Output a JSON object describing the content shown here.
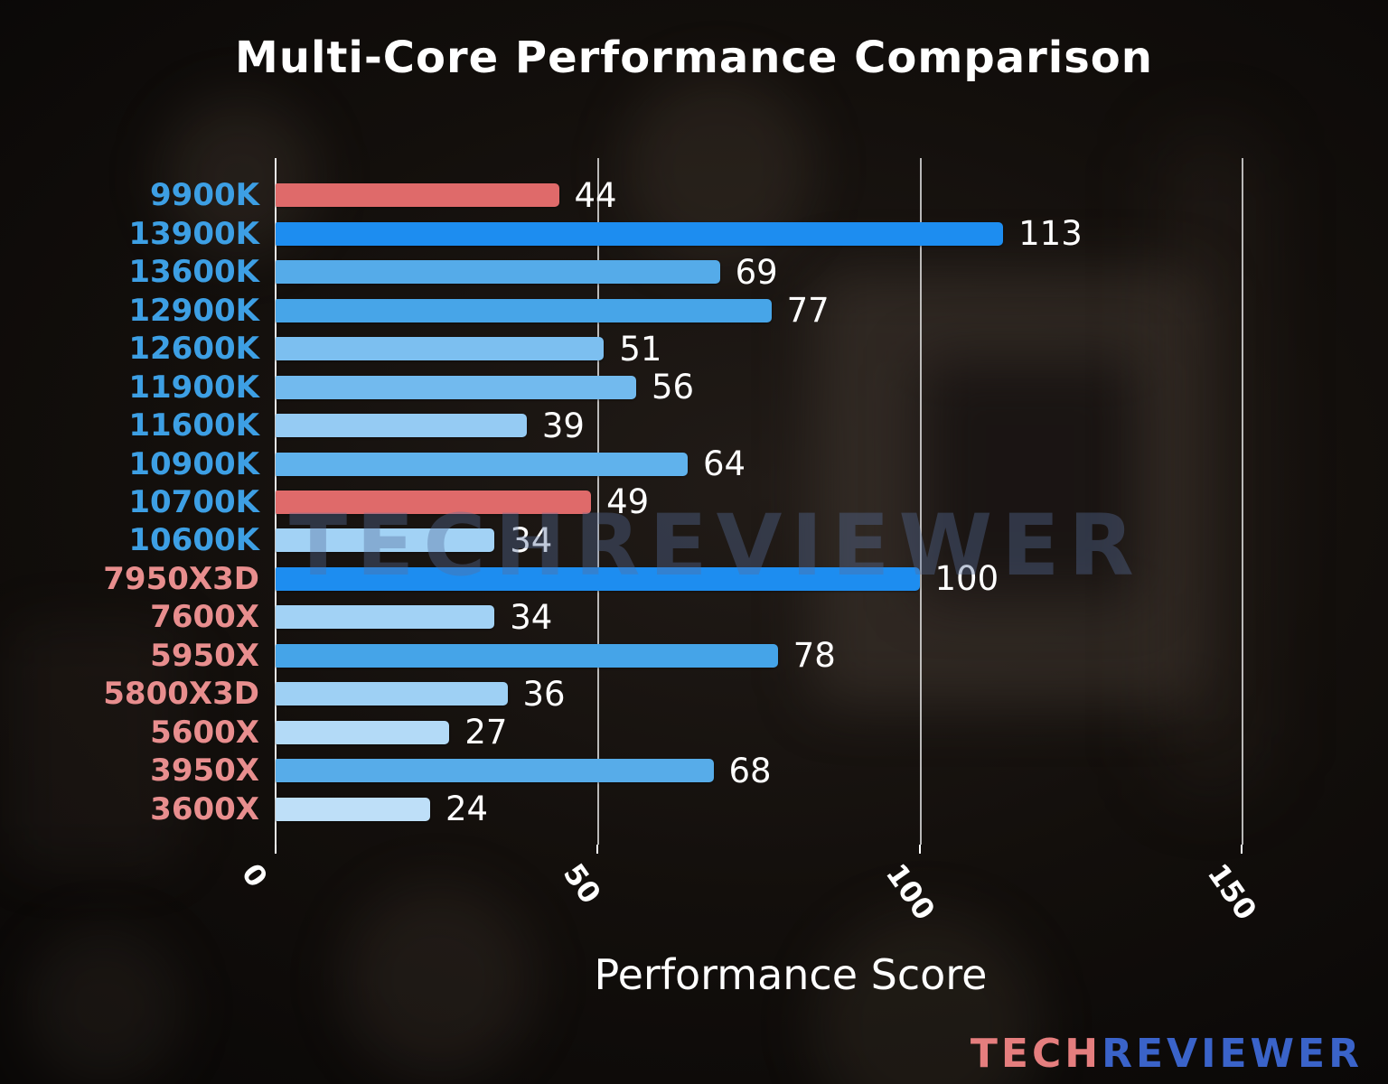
{
  "title": "Multi-Core Performance Comparison",
  "watermark": "TECHREVIEWER",
  "logo": {
    "tech": "TECH",
    "reviewer": "REVIEWER"
  },
  "chart_data": {
    "type": "bar",
    "orientation": "horizontal",
    "title": "Multi-Core Performance Comparison",
    "xlabel": "Performance Score",
    "xlim": [
      0,
      160
    ],
    "xticks": [
      0,
      50,
      100,
      150
    ],
    "grid": "vertical-gridlines-at-ticks",
    "legend": "none",
    "background": "dark blurred motherboard photo",
    "categories": [
      "9900K",
      "13900K",
      "13600K",
      "12900K",
      "12600K",
      "11900K",
      "11600K",
      "10900K",
      "10700K",
      "10600K",
      "7950X3D",
      "7600X",
      "5950X",
      "5800X3D",
      "5600X",
      "3950X",
      "3600X"
    ],
    "values": [
      44,
      113,
      69,
      77,
      51,
      56,
      39,
      64,
      49,
      34,
      100,
      34,
      78,
      36,
      27,
      68,
      24
    ],
    "bars": [
      {
        "label": "9900K",
        "value": 44,
        "bar_color": "#df6a6a",
        "label_color": "#3d9fe4"
      },
      {
        "label": "13900K",
        "value": 113,
        "bar_color": "#1d8df0",
        "label_color": "#3d9fe4"
      },
      {
        "label": "13600K",
        "value": 69,
        "bar_color": "#55abe9",
        "label_color": "#3d9fe4"
      },
      {
        "label": "12900K",
        "value": 77,
        "bar_color": "#47a5e8",
        "label_color": "#3d9fe4"
      },
      {
        "label": "12600K",
        "value": 51,
        "bar_color": "#7cbff0",
        "label_color": "#3d9fe4"
      },
      {
        "label": "11900K",
        "value": 56,
        "bar_color": "#72baee",
        "label_color": "#3d9fe4"
      },
      {
        "label": "11600K",
        "value": 39,
        "bar_color": "#95cbf3",
        "label_color": "#3d9fe4"
      },
      {
        "label": "10900K",
        "value": 64,
        "bar_color": "#60b2ec",
        "label_color": "#3d9fe4"
      },
      {
        "label": "10700K",
        "value": 49,
        "bar_color": "#df6a6a",
        "label_color": "#3d9fe4"
      },
      {
        "label": "10600K",
        "value": 34,
        "bar_color": "#a2d2f5",
        "label_color": "#3d9fe4"
      },
      {
        "label": "7950X3D",
        "value": 100,
        "bar_color": "#1d8df0",
        "label_color": "#e88e8e"
      },
      {
        "label": "7600X",
        "value": 34,
        "bar_color": "#a2d2f5",
        "label_color": "#e88e8e"
      },
      {
        "label": "5950X",
        "value": 78,
        "bar_color": "#45a4e8",
        "label_color": "#e88e8e"
      },
      {
        "label": "5800X3D",
        "value": 36,
        "bar_color": "#9ed0f4",
        "label_color": "#e88e8e"
      },
      {
        "label": "5600X",
        "value": 27,
        "bar_color": "#b3daf7",
        "label_color": "#e88e8e"
      },
      {
        "label": "3950X",
        "value": 68,
        "bar_color": "#57ace9",
        "label_color": "#e88e8e"
      },
      {
        "label": "3600X",
        "value": 24,
        "bar_color": "#bedff8",
        "label_color": "#e88e8e"
      }
    ]
  }
}
